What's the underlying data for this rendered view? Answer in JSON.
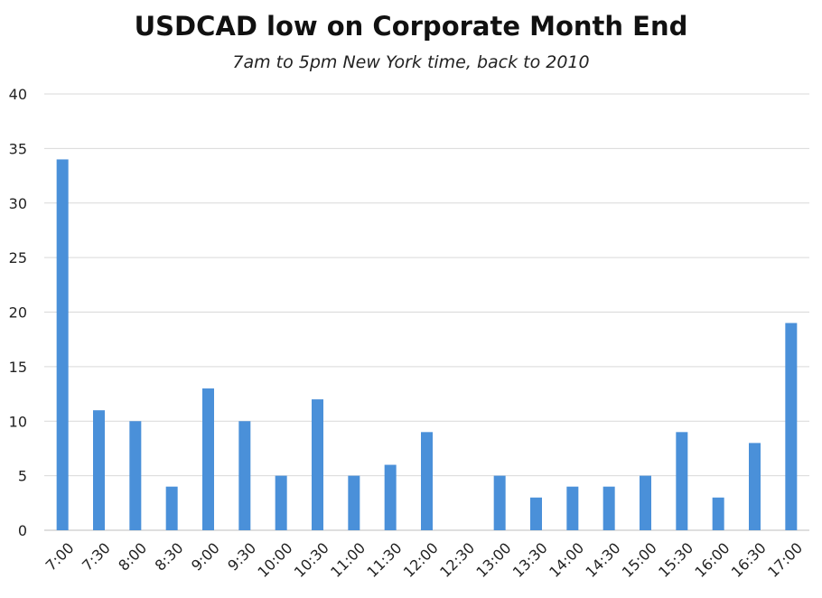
{
  "chart_data": {
    "type": "bar",
    "title": "USDCAD low on Corporate Month End",
    "subtitle": "7am to 5pm New York time, back to 2010",
    "xlabel": "",
    "ylabel": "",
    "categories": [
      "7:00",
      "7:30",
      "8:00",
      "8:30",
      "9:00",
      "9:30",
      "10:00",
      "10:30",
      "11:00",
      "11:30",
      "12:00",
      "12:30",
      "13:00",
      "13:30",
      "14:00",
      "14:30",
      "15:00",
      "15:30",
      "16:00",
      "16:30",
      "17:00"
    ],
    "values": [
      34,
      11,
      10,
      4,
      13,
      10,
      5,
      12,
      5,
      6,
      9,
      0,
      5,
      3,
      4,
      4,
      5,
      9,
      3,
      8,
      19
    ],
    "ylim": [
      0,
      40
    ],
    "yticks": [
      0,
      5,
      10,
      15,
      20,
      25,
      30,
      35,
      40
    ],
    "grid": true,
    "legend": "none",
    "bar_color": "#4a90d9",
    "grid_color": "#d9d9d9"
  }
}
